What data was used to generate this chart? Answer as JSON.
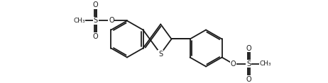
{
  "bg_color": "#ffffff",
  "line_color": "#1a1a1a",
  "lw": 1.3,
  "figsize": [
    4.62,
    1.18
  ],
  "dpi": 100,
  "xlim": [
    0,
    46.2
  ],
  "ylim": [
    0,
    11.8
  ]
}
